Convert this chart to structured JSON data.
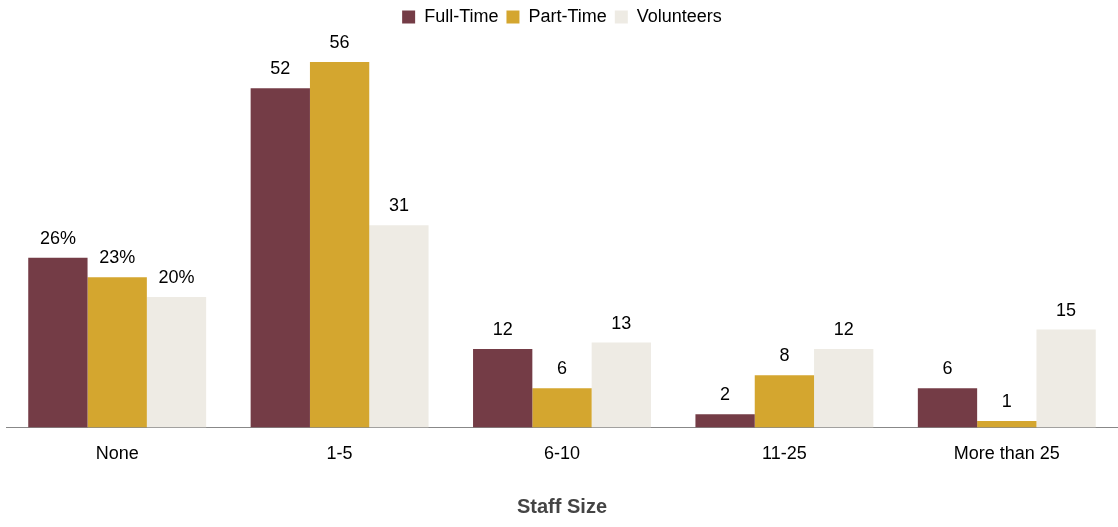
{
  "chart_data": {
    "type": "bar",
    "xlabel": "Staff Size",
    "categories": [
      "None",
      "1-5",
      "6-10",
      "11-25",
      "More than 25"
    ],
    "series": [
      {
        "name": "Full-Time",
        "color": "#743c46",
        "values": [
          26,
          52,
          12,
          2,
          6
        ],
        "value_labels": [
          "26%",
          "52",
          "12",
          "2",
          "6"
        ]
      },
      {
        "name": "Part-Time",
        "color": "#d4a62f",
        "values": [
          23,
          56,
          6,
          8,
          1
        ],
        "value_labels": [
          "23%",
          "56",
          "6",
          "8",
          "1"
        ]
      },
      {
        "name": "Volunteers",
        "color": "#eeebe4",
        "values": [
          20,
          31,
          13,
          12,
          15
        ],
        "value_labels": [
          "20%",
          "31",
          "13",
          "12",
          "15"
        ]
      }
    ],
    "legend": "top",
    "grid": false
  }
}
